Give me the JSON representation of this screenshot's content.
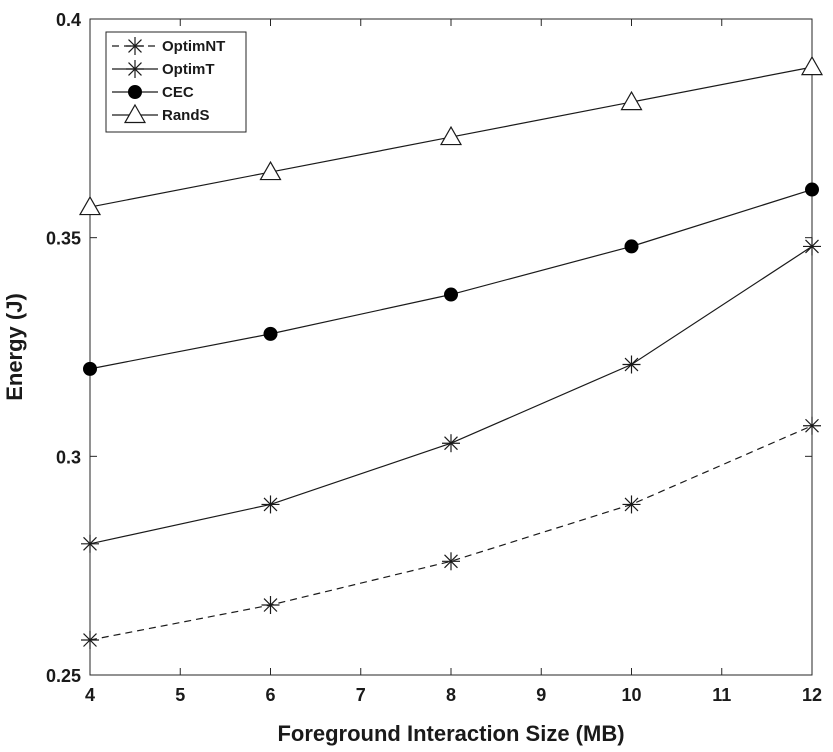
{
  "chart_data": {
    "type": "line",
    "title": "",
    "xlabel": "Foreground Interaction Size (MB)",
    "ylabel": "Energy (J)",
    "xlim": [
      4,
      12
    ],
    "ylim": [
      0.25,
      0.4
    ],
    "xticks": [
      4,
      5,
      6,
      7,
      8,
      9,
      10,
      11,
      12
    ],
    "yticks": [
      0.25,
      0.3,
      0.35,
      0.4
    ],
    "ytick_labels": [
      "0.25",
      "0.3",
      "0.35",
      "0.4"
    ],
    "grid": false,
    "legend_position": "top-left",
    "x": [
      4,
      6,
      8,
      10,
      12
    ],
    "series": [
      {
        "name": "OptimNT",
        "values": [
          0.258,
          0.266,
          0.276,
          0.289,
          0.307
        ],
        "marker": "asterisk",
        "line_style": "dashed",
        "color": "#1a1a1a"
      },
      {
        "name": "OptimT",
        "values": [
          0.28,
          0.289,
          0.303,
          0.321,
          0.348
        ],
        "marker": "asterisk",
        "line_style": "solid",
        "color": "#1a1a1a"
      },
      {
        "name": "CEC",
        "values": [
          0.32,
          0.328,
          0.337,
          0.348,
          0.361
        ],
        "marker": "filled-circle",
        "line_style": "solid",
        "color": "#1a1a1a"
      },
      {
        "name": "RandS",
        "values": [
          0.357,
          0.365,
          0.373,
          0.381,
          0.389
        ],
        "marker": "open-triangle",
        "line_style": "solid",
        "color": "#1a1a1a"
      }
    ]
  }
}
